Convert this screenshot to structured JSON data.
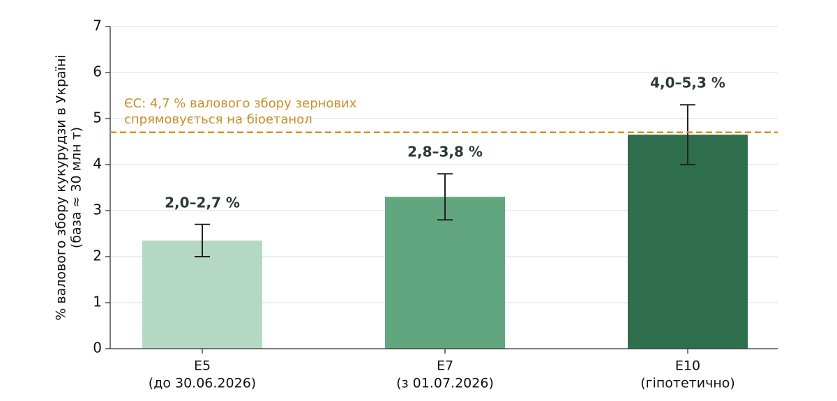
{
  "chart_data": {
    "type": "bar",
    "ylabel": [
      "% валового збору кукурудзи в Україні",
      "(база ≈ 30 млн т)"
    ],
    "categories": [
      "E5",
      "E7",
      "E10"
    ],
    "category_notes": [
      "(до 30.06.2026)",
      "(з 01.07.2026)",
      "(гіпотетично)"
    ],
    "values": [
      2.35,
      3.3,
      4.65
    ],
    "ranges": [
      [
        2.0,
        2.7
      ],
      [
        2.8,
        3.8
      ],
      [
        4.0,
        5.3
      ]
    ],
    "value_labels": [
      "2,0–2,7 %",
      "2,8–3,8 %",
      "4,0–5,3 %"
    ],
    "colors": [
      "#b5d8c4",
      "#62a67f",
      "#2e6e4d"
    ],
    "reference_line": {
      "value": 4.7,
      "color": "#d4921e",
      "label": [
        "ЄС: 4,7 % валового збору зернових",
        "спрямовується на біоетанол"
      ]
    },
    "ylim": [
      0,
      7
    ],
    "yticks": [
      0,
      1,
      2,
      3,
      4,
      5,
      6,
      7
    ],
    "grid": true
  }
}
